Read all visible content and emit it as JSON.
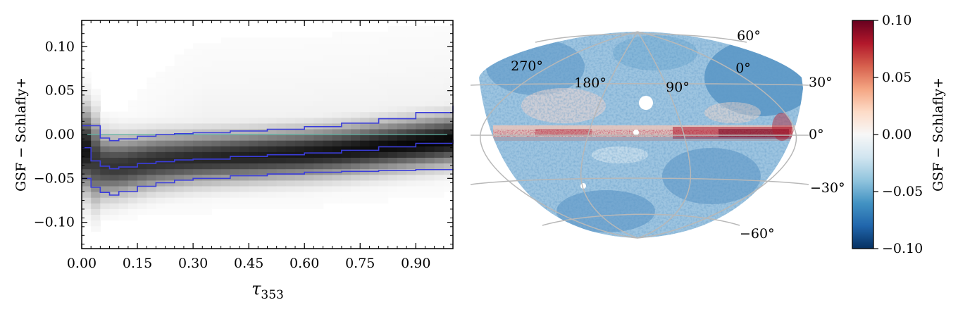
{
  "chart_data": [
    {
      "type": "heatmap",
      "xlabel": "τ353",
      "ylabel": "GSF − Schlafly+",
      "xlim": [
        0.0,
        1.0
      ],
      "ylim": [
        -0.13,
        0.13
      ],
      "xticks": [
        0.0,
        0.15,
        0.3,
        0.45,
        0.6,
        0.75,
        0.9
      ],
      "xtick_labels": [
        "0.00",
        "0.15",
        "0.30",
        "0.45",
        "0.60",
        "0.75",
        "0.90"
      ],
      "yticks": [
        -0.1,
        -0.05,
        0.0,
        0.05,
        0.1
      ],
      "ytick_labels": [
        "−0.10",
        "−0.05",
        "0.00",
        "0.05",
        "0.10"
      ],
      "colormap": "greys",
      "series": [
        {
          "x": [
            0.0,
            0.025,
            0.05,
            0.075,
            0.1,
            0.15,
            0.2,
            0.25,
            0.3,
            0.4,
            0.5,
            0.6,
            0.7,
            0.8,
            0.9,
            1.0
          ],
          "values": [
            0.01,
            0.01,
            -0.004,
            -0.007,
            -0.005,
            -0.002,
            0.0,
            0.001,
            0.002,
            0.004,
            0.006,
            0.009,
            0.013,
            0.018,
            0.025,
            0.033
          ]
        },
        {
          "x": [
            0.0,
            0.025,
            0.05,
            0.075,
            0.1,
            0.15,
            0.2,
            0.25,
            0.3,
            0.4,
            0.5,
            0.6,
            0.7,
            0.8,
            0.9,
            1.0
          ],
          "values": [
            -0.015,
            -0.03,
            -0.036,
            -0.039,
            -0.037,
            -0.033,
            -0.031,
            -0.029,
            -0.028,
            -0.025,
            -0.023,
            -0.021,
            -0.018,
            -0.014,
            -0.01,
            -0.006
          ]
        },
        {
          "x": [
            0.0,
            0.025,
            0.05,
            0.075,
            0.1,
            0.15,
            0.2,
            0.25,
            0.3,
            0.4,
            0.5,
            0.6,
            0.7,
            0.8,
            0.9,
            1.0
          ],
          "values": [
            -0.05,
            -0.06,
            -0.066,
            -0.069,
            -0.065,
            -0.059,
            -0.055,
            -0.052,
            -0.05,
            -0.047,
            -0.045,
            -0.043,
            -0.042,
            -0.041,
            -0.04,
            -0.039
          ]
        }
      ],
      "reference_line": {
        "y": 0.0,
        "color": "#5fb3a4"
      },
      "line_color": "#3b3ddb",
      "density_center": [
        [
          0.0,
          -0.012
        ],
        [
          0.05,
          -0.035
        ],
        [
          0.1,
          -0.036
        ],
        [
          0.2,
          -0.03
        ],
        [
          0.3,
          -0.027
        ],
        [
          0.4,
          -0.025
        ],
        [
          0.5,
          -0.023
        ],
        [
          0.6,
          -0.021
        ],
        [
          0.7,
          -0.018
        ],
        [
          0.8,
          -0.014
        ],
        [
          0.9,
          -0.01
        ],
        [
          1.0,
          -0.006
        ]
      ]
    },
    {
      "type": "heatmap",
      "projection": "mollweide (galactic coordinates)",
      "longitude_labels": [
        "270°",
        "180°",
        "90°",
        "0°"
      ],
      "latitude_labels": [
        "60°",
        "30°",
        "0°",
        "−30°",
        "−60°"
      ],
      "colorbar": {
        "label": "GSF − Schlafly+",
        "range": [
          -0.1,
          0.1
        ],
        "ticks": [
          0.1,
          0.05,
          0.0,
          -0.05,
          -0.1
        ],
        "tick_labels": [
          "0.10",
          "0.05",
          "0.00",
          "−0.05",
          "−0.10"
        ],
        "colormap": "RdBu_r",
        "colors": [
          "#053061",
          "#2166ac",
          "#4393c3",
          "#92c5de",
          "#d1e5f0",
          "#f7f7f7",
          "#fddbc7",
          "#f4a582",
          "#d6604d",
          "#b2182b",
          "#67001f"
        ]
      },
      "grid": true
    }
  ]
}
